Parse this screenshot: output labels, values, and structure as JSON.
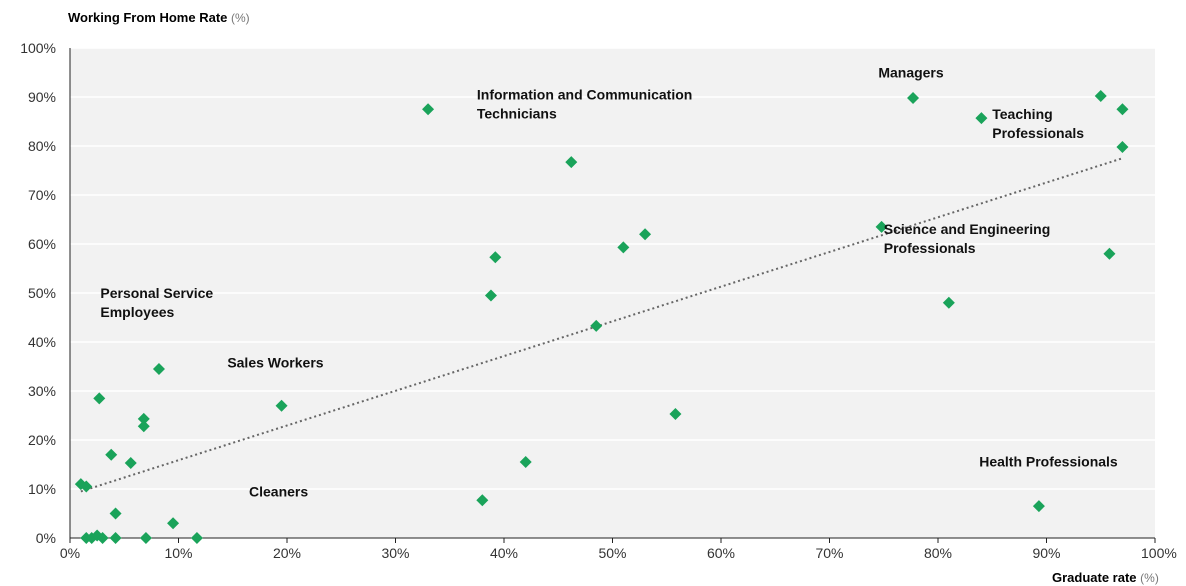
{
  "chart_data": {
    "type": "scatter",
    "ylabel": "Working From Home Rate",
    "ylabel_unit": "(%)",
    "xlabel": "Graduate rate",
    "xlabel_unit": "(%)",
    "xlim": [
      0,
      100
    ],
    "ylim": [
      0,
      100
    ],
    "x_ticks": [
      "0%",
      "10%",
      "20%",
      "30%",
      "40%",
      "50%",
      "60%",
      "70%",
      "80%",
      "90%",
      "100%"
    ],
    "y_ticks": [
      "0%",
      "10%",
      "20%",
      "30%",
      "40%",
      "50%",
      "60%",
      "70%",
      "80%",
      "90%",
      "100%"
    ],
    "grid": true,
    "marker_color": "#1aa35a",
    "trendline": {
      "style": "dotted",
      "color": "#666666",
      "x": [
        1,
        97
      ],
      "y": [
        9.5,
        77.5
      ]
    },
    "points": [
      {
        "x": 1.0,
        "y": 11.0
      },
      {
        "x": 1.5,
        "y": 10.5
      },
      {
        "x": 1.5,
        "y": 0.0
      },
      {
        "x": 2.0,
        "y": 0.0
      },
      {
        "x": 2.5,
        "y": 0.5
      },
      {
        "x": 3.0,
        "y": 0.0
      },
      {
        "x": 2.7,
        "y": 28.5
      },
      {
        "x": 3.8,
        "y": 17.0
      },
      {
        "x": 4.2,
        "y": 5.0
      },
      {
        "x": 4.2,
        "y": 0.0
      },
      {
        "x": 5.6,
        "y": 15.3
      },
      {
        "x": 6.8,
        "y": 24.3
      },
      {
        "x": 6.8,
        "y": 22.8
      },
      {
        "x": 7.0,
        "y": 0.0
      },
      {
        "x": 8.2,
        "y": 34.5
      },
      {
        "x": 9.5,
        "y": 3.0
      },
      {
        "x": 11.7,
        "y": 0.0
      },
      {
        "x": 19.5,
        "y": 27.0
      },
      {
        "x": 33.0,
        "y": 87.5
      },
      {
        "x": 38.0,
        "y": 7.7
      },
      {
        "x": 38.8,
        "y": 49.5
      },
      {
        "x": 39.2,
        "y": 57.3
      },
      {
        "x": 42.0,
        "y": 15.5
      },
      {
        "x": 46.2,
        "y": 76.7
      },
      {
        "x": 48.5,
        "y": 43.3
      },
      {
        "x": 51.0,
        "y": 59.3
      },
      {
        "x": 53.0,
        "y": 62.0
      },
      {
        "x": 55.8,
        "y": 25.3
      },
      {
        "x": 74.8,
        "y": 63.5
      },
      {
        "x": 77.7,
        "y": 89.8
      },
      {
        "x": 81.0,
        "y": 48.0
      },
      {
        "x": 84.0,
        "y": 85.7
      },
      {
        "x": 89.3,
        "y": 6.5
      },
      {
        "x": 95.0,
        "y": 90.2
      },
      {
        "x": 95.8,
        "y": 58.0
      },
      {
        "x": 97.0,
        "y": 87.5
      },
      {
        "x": 97.0,
        "y": 79.8
      }
    ],
    "annotations": [
      {
        "lines": [
          "Information and Communication",
          "Technicians"
        ],
        "x": 37.5,
        "y": 89.5
      },
      {
        "lines": [
          "Managers"
        ],
        "x": 74.5,
        "y": 94.0
      },
      {
        "lines": [
          "Teaching",
          "Professionals"
        ],
        "x": 85.0,
        "y": 85.5
      },
      {
        "lines": [
          "Science and Engineering",
          "Professionals"
        ],
        "x": 75.0,
        "y": 62.0
      },
      {
        "lines": [
          "Personal Service",
          "Employees"
        ],
        "x": 2.8,
        "y": 49.0
      },
      {
        "lines": [
          "Sales Workers"
        ],
        "x": 14.5,
        "y": 34.8
      },
      {
        "lines": [
          "Cleaners"
        ],
        "x": 16.5,
        "y": 8.5
      },
      {
        "lines": [
          "Health Professionals"
        ],
        "x": 83.8,
        "y": 14.6
      }
    ]
  }
}
